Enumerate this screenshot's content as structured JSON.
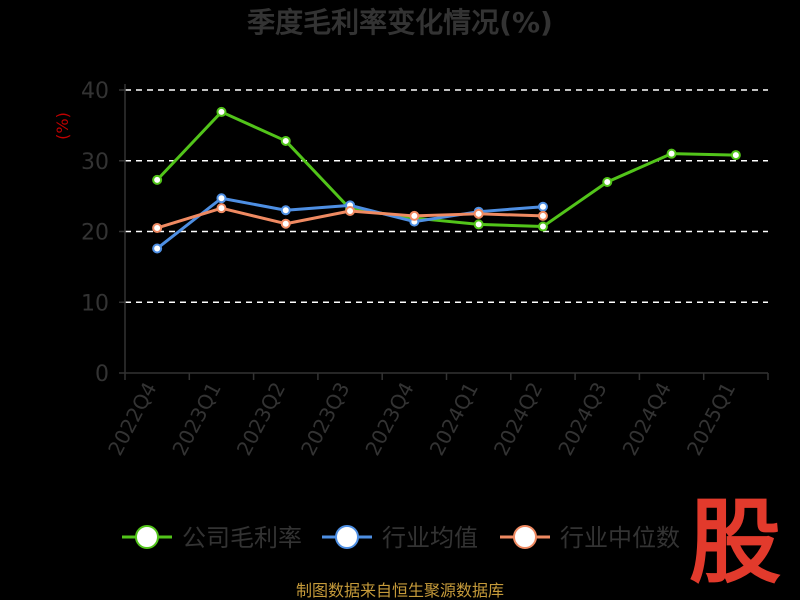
{
  "chart_data": {
    "type": "line",
    "title": "季度毛利率变化情况(%)",
    "unit_label": "(%)",
    "categories": [
      "2022Q4",
      "2023Q1",
      "2023Q2",
      "2023Q3",
      "2023Q4",
      "2024Q1",
      "2024Q2",
      "2024Q3",
      "2024Q4",
      "2025Q1"
    ],
    "ylim": [
      0,
      40
    ],
    "yticks": [
      "0",
      "10",
      "20",
      "30",
      "40"
    ],
    "grid": true,
    "legend_position": "bottom",
    "series": [
      {
        "name": "公司毛利率",
        "color": "#52c41a",
        "values": [
          27.3,
          36.9,
          32.8,
          23.2,
          21.9,
          21.0,
          20.7,
          27.0,
          31.0,
          30.8
        ]
      },
      {
        "name": "行业均值",
        "color": "#4e8fe3",
        "values": [
          17.6,
          24.7,
          23.0,
          23.7,
          21.4,
          22.8,
          23.5,
          null,
          null,
          null
        ]
      },
      {
        "name": "行业中位数",
        "color": "#ef8a62",
        "values": [
          20.5,
          23.3,
          21.1,
          22.9,
          22.2,
          22.5,
          22.2,
          null,
          null,
          null
        ]
      }
    ]
  },
  "footer": {
    "source": "制图数据来自恒生聚源数据库",
    "brand": "股"
  }
}
